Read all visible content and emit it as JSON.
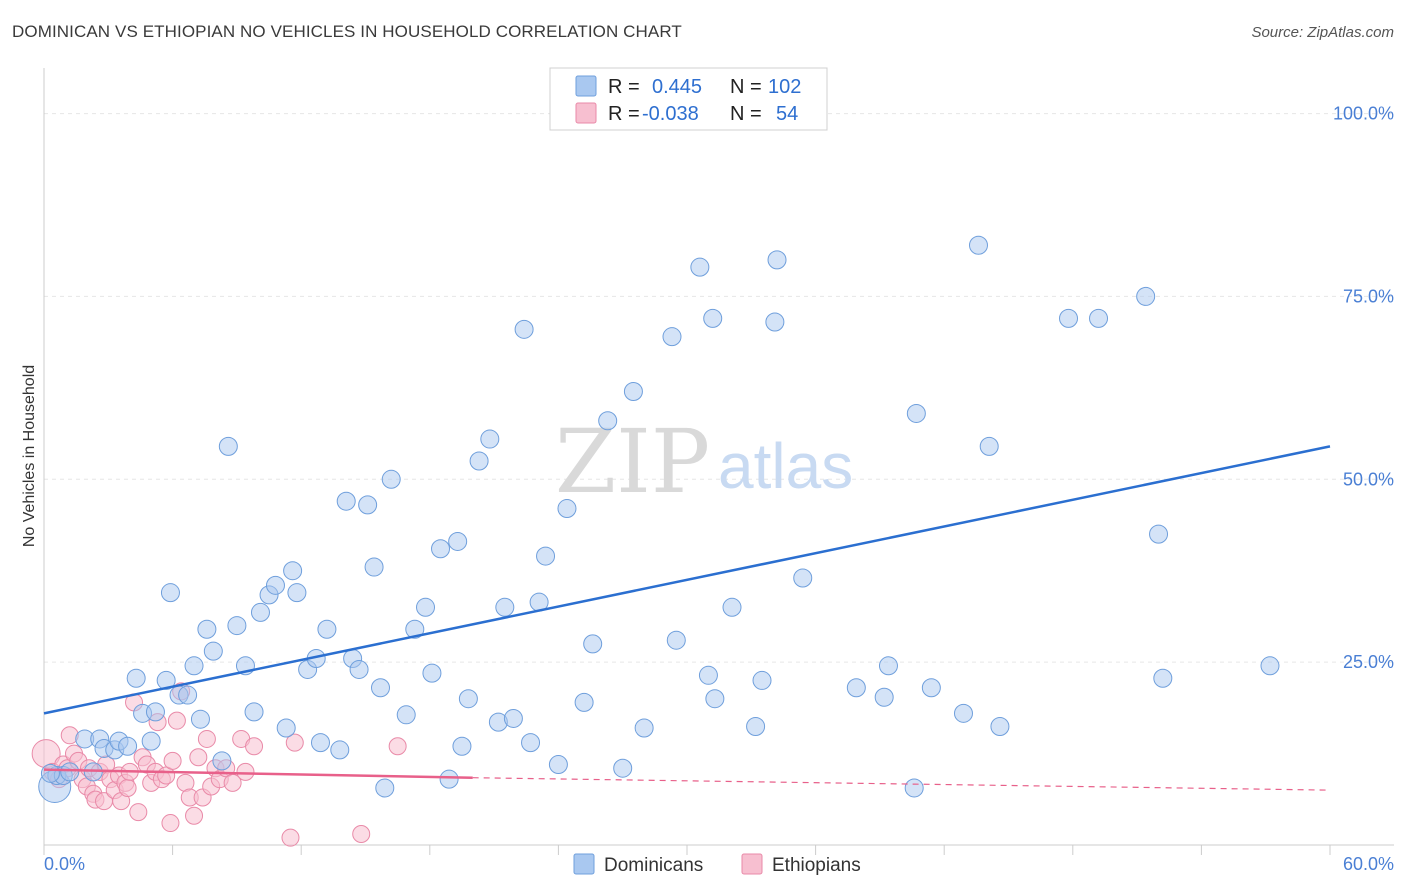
{
  "title": "DOMINICAN VS ETHIOPIAN NO VEHICLES IN HOUSEHOLD CORRELATION CHART",
  "source": "Source: ZipAtlas.com",
  "watermark": {
    "zip": "ZIP",
    "atlas": "atlas"
  },
  "legend": {
    "rows": [
      {
        "r_label": "R =",
        "r_value": "0.445",
        "n_label": "N =",
        "n_value": "102"
      },
      {
        "r_label": "R =",
        "r_value": "-0.038",
        "n_label": "N =",
        "n_value": "54"
      }
    ]
  },
  "bottom_legend": {
    "dominicans": "Dominicans",
    "ethiopians": "Ethiopians"
  },
  "colors": {
    "dominican_fill": "#a9c8f0",
    "dominican_stroke": "#6f9fdc",
    "dominican_line": "#2b6fd0",
    "ethiopian_fill": "#f7bfd0",
    "ethiopian_stroke": "#e98aa8",
    "ethiopian_line": "#e8608a",
    "grid": "#e6e6e6",
    "tick_label": "#4a7fd4"
  },
  "chart_data": {
    "type": "scatter",
    "title": "DOMINICAN VS ETHIOPIAN NO VEHICLES IN HOUSEHOLD CORRELATION CHART",
    "xlabel": "",
    "ylabel": "No Vehicles in Household",
    "xlim": [
      0,
      60
    ],
    "ylim": [
      0,
      105
    ],
    "x_tick_labels": [
      "0.0%",
      "60.0%"
    ],
    "y_ticks": [
      25,
      50,
      75,
      100
    ],
    "y_tick_labels": [
      "25.0%",
      "50.0%",
      "75.0%",
      "100.0%"
    ],
    "grid": true,
    "legend_position": "top-center",
    "series": [
      {
        "name": "Dominicans",
        "r": 0.445,
        "n": 102,
        "trend": {
          "x": [
            0,
            60
          ],
          "y": [
            18.0,
            54.5
          ]
        },
        "points": [
          [
            0.5,
            8.0
          ],
          [
            0.6,
            9.5
          ],
          [
            0.9,
            9.5
          ],
          [
            1.2,
            10.0
          ],
          [
            1.9,
            14.5
          ],
          [
            2.3,
            10.0
          ],
          [
            2.6,
            14.5
          ],
          [
            2.8,
            13.2
          ],
          [
            3.3,
            13.0
          ],
          [
            3.5,
            14.2
          ],
          [
            3.9,
            13.5
          ],
          [
            4.3,
            22.8
          ],
          [
            4.6,
            18.0
          ],
          [
            5.0,
            14.2
          ],
          [
            5.2,
            18.2
          ],
          [
            5.7,
            22.5
          ],
          [
            5.9,
            34.5
          ],
          [
            6.3,
            20.5
          ],
          [
            6.7,
            20.5
          ],
          [
            7.0,
            24.5
          ],
          [
            7.3,
            17.2
          ],
          [
            7.6,
            29.5
          ],
          [
            7.9,
            26.5
          ],
          [
            8.3,
            11.5
          ],
          [
            8.6,
            54.5
          ],
          [
            9.0,
            30.0
          ],
          [
            9.4,
            24.5
          ],
          [
            9.8,
            18.2
          ],
          [
            10.1,
            31.8
          ],
          [
            10.5,
            34.2
          ],
          [
            10.8,
            35.5
          ],
          [
            11.3,
            16.0
          ],
          [
            11.6,
            37.5
          ],
          [
            11.8,
            34.5
          ],
          [
            12.3,
            24.0
          ],
          [
            12.7,
            25.5
          ],
          [
            12.9,
            14.0
          ],
          [
            13.2,
            29.5
          ],
          [
            13.8,
            13.0
          ],
          [
            14.1,
            47.0
          ],
          [
            14.4,
            25.5
          ],
          [
            14.7,
            24.0
          ],
          [
            15.1,
            46.5
          ],
          [
            15.4,
            38.0
          ],
          [
            15.7,
            21.5
          ],
          [
            15.9,
            7.8
          ],
          [
            16.2,
            50.0
          ],
          [
            16.9,
            17.8
          ],
          [
            17.3,
            29.5
          ],
          [
            17.8,
            32.5
          ],
          [
            18.1,
            23.5
          ],
          [
            18.5,
            40.5
          ],
          [
            18.9,
            9.0
          ],
          [
            19.3,
            41.5
          ],
          [
            19.5,
            13.5
          ],
          [
            19.8,
            20.0
          ],
          [
            20.3,
            52.5
          ],
          [
            20.8,
            55.5
          ],
          [
            21.2,
            16.8
          ],
          [
            21.5,
            32.5
          ],
          [
            21.9,
            17.3
          ],
          [
            22.4,
            70.5
          ],
          [
            22.7,
            14.0
          ],
          [
            23.1,
            33.2
          ],
          [
            23.4,
            39.5
          ],
          [
            24.0,
            11.0
          ],
          [
            24.4,
            46.0
          ],
          [
            25.2,
            19.5
          ],
          [
            25.6,
            27.5
          ],
          [
            26.3,
            58.0
          ],
          [
            27.0,
            10.5
          ],
          [
            27.5,
            62.0
          ],
          [
            28.0,
            16.0
          ],
          [
            29.3,
            69.5
          ],
          [
            29.5,
            28.0
          ],
          [
            30.6,
            79.0
          ],
          [
            31.0,
            23.2
          ],
          [
            31.2,
            72.0
          ],
          [
            31.3,
            20.0
          ],
          [
            32.1,
            32.5
          ],
          [
            33.2,
            16.2
          ],
          [
            33.5,
            22.5
          ],
          [
            34.1,
            71.5
          ],
          [
            34.2,
            80.0
          ],
          [
            35.4,
            36.5
          ],
          [
            37.9,
            21.5
          ],
          [
            39.2,
            20.2
          ],
          [
            39.4,
            24.5
          ],
          [
            40.6,
            7.8
          ],
          [
            40.7,
            59.0
          ],
          [
            41.4,
            21.5
          ],
          [
            42.9,
            18.0
          ],
          [
            43.6,
            82.0
          ],
          [
            44.1,
            54.5
          ],
          [
            44.6,
            16.2
          ],
          [
            47.8,
            72.0
          ],
          [
            49.2,
            72.0
          ],
          [
            51.4,
            75.0
          ],
          [
            52.0,
            42.5
          ],
          [
            52.2,
            22.8
          ],
          [
            57.2,
            24.5
          ],
          [
            0.3,
            9.8
          ]
        ]
      },
      {
        "name": "Ethiopians",
        "r": -0.038,
        "n": 54,
        "trend": {
          "x": [
            0,
            20
          ],
          "y": [
            10.3,
            9.2
          ]
        },
        "trend_dashed": {
          "x": [
            20,
            60
          ],
          "y": [
            9.2,
            7.5
          ]
        },
        "points": [
          [
            0.1,
            12.5
          ],
          [
            0.4,
            10.0
          ],
          [
            0.7,
            9.0
          ],
          [
            0.9,
            11.0
          ],
          [
            1.1,
            10.5
          ],
          [
            1.2,
            15.0
          ],
          [
            1.4,
            12.5
          ],
          [
            1.6,
            11.5
          ],
          [
            1.8,
            9.0
          ],
          [
            2.0,
            8.0
          ],
          [
            2.1,
            10.5
          ],
          [
            2.3,
            7.0
          ],
          [
            2.4,
            6.2
          ],
          [
            2.6,
            10.0
          ],
          [
            2.8,
            6.0
          ],
          [
            2.9,
            11.0
          ],
          [
            3.1,
            9.0
          ],
          [
            3.3,
            7.5
          ],
          [
            3.5,
            9.5
          ],
          [
            3.6,
            6.0
          ],
          [
            3.8,
            8.5
          ],
          [
            3.9,
            7.8
          ],
          [
            4.0,
            10.0
          ],
          [
            4.2,
            19.5
          ],
          [
            4.4,
            4.5
          ],
          [
            4.6,
            12.0
          ],
          [
            4.8,
            11.0
          ],
          [
            5.0,
            8.5
          ],
          [
            5.2,
            10.0
          ],
          [
            5.3,
            16.8
          ],
          [
            5.5,
            9.0
          ],
          [
            5.7,
            9.5
          ],
          [
            5.9,
            3.0
          ],
          [
            6.0,
            11.5
          ],
          [
            6.2,
            17.0
          ],
          [
            6.4,
            21.0
          ],
          [
            6.6,
            8.5
          ],
          [
            6.8,
            6.5
          ],
          [
            7.0,
            4.0
          ],
          [
            7.2,
            12.0
          ],
          [
            7.4,
            6.5
          ],
          [
            7.6,
            14.5
          ],
          [
            7.8,
            8.0
          ],
          [
            8.0,
            10.5
          ],
          [
            8.2,
            9.0
          ],
          [
            8.5,
            10.5
          ],
          [
            8.8,
            8.5
          ],
          [
            9.2,
            14.5
          ],
          [
            9.4,
            10.0
          ],
          [
            9.8,
            13.5
          ],
          [
            11.5,
            1.0
          ],
          [
            11.7,
            14.0
          ],
          [
            14.8,
            1.5
          ],
          [
            16.5,
            13.5
          ]
        ]
      }
    ]
  }
}
